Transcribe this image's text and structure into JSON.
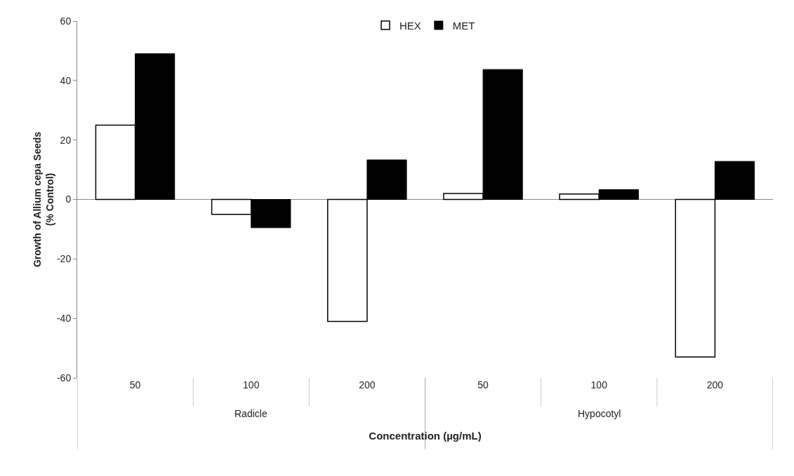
{
  "chart_data": {
    "type": "bar",
    "categories": [
      "50",
      "100",
      "200",
      "50",
      "100",
      "200"
    ],
    "series": [
      {
        "name": "HEX",
        "color": "#ffffff",
        "values": [
          25,
          -5,
          -41,
          2,
          1.8,
          -53
        ]
      },
      {
        "name": "MET",
        "color": "#000000",
        "values": [
          49,
          -9.5,
          13.3,
          43.7,
          3.3,
          12.8
        ]
      }
    ],
    "xlabel": "Concentration (µg/mL)",
    "ylabel": "Growth of Allium cepa Seeds\n(% Control)",
    "annotations": [
      "Radicle",
      "Hypocotyl"
    ],
    "ylim": [
      -60,
      60
    ],
    "yticks": [
      -60,
      -40,
      -20,
      0,
      20,
      40,
      60
    ],
    "legend": "top"
  }
}
